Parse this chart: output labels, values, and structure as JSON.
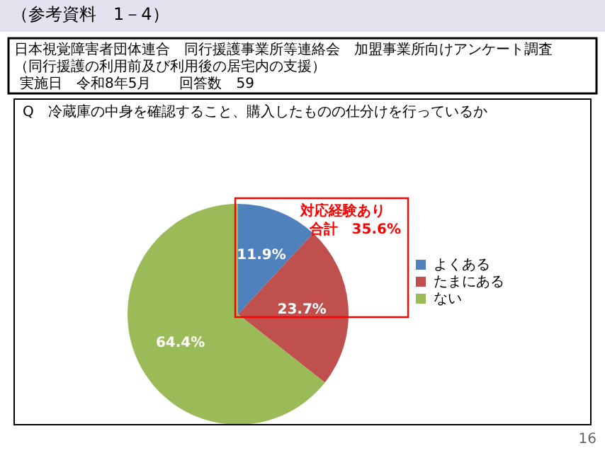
{
  "chart_data": {
    "type": "pie",
    "title": "（参考資料　1－4）",
    "subtitle": "日本視覚障害者団体連合　同行援護事業所等連絡会　加盟事業所向けアンケート調査（同行援護の利用前及び利用後の居宅内の支援）",
    "annotations": [
      "Q　冷蔵庫の中身を確認すること、購入したものの仕分けを行っているか",
      "実施日　令和8年5月　　回答数　59",
      "対応経験あり",
      "合計　35.6%",
      "16"
    ],
    "categories": [
      "よくある",
      "たまにある",
      "ない"
    ],
    "values": [
      11.9,
      23.7,
      64.4
    ],
    "colors": [
      "#4f81bd",
      "#c0504d",
      "#9bbb59"
    ],
    "value_labels": [
      "11.9%",
      "23.7%",
      "64.4%"
    ],
    "legend": "right"
  }
}
